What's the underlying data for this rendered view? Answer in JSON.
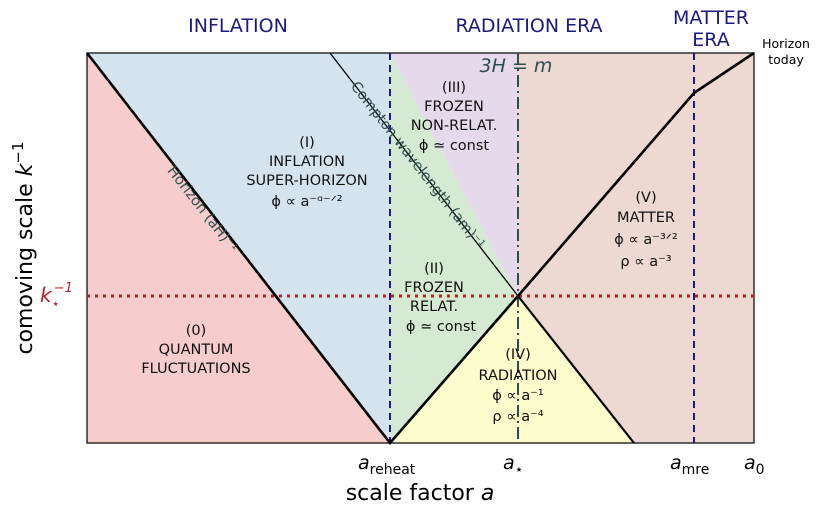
{
  "eras": {
    "inflation": "INFLATION",
    "radiation": "RADIATION ERA",
    "matter_line1": "MATTER",
    "matter_line2": "ERA"
  },
  "horizon_today": {
    "line1": "Horizon",
    "line2": "today"
  },
  "regions": {
    "r0": {
      "id": "(0)",
      "line1": "QUANTUM",
      "line2": "FLUCTUATIONS"
    },
    "r1": {
      "id": "(I)",
      "line1": "INFLATION",
      "line2": "SUPER-HORIZON",
      "eq": "ϕ ∝ a⁻ᵅ⁻ᐟ²"
    },
    "r2": {
      "id": "(II)",
      "line1": "FROZEN",
      "line2": "RELAT.",
      "eq": "ϕ ≃ const"
    },
    "r3": {
      "id": "(III)",
      "line1": "FROZEN",
      "line2": "NON-RELAT.",
      "eq": "ϕ ≃ const"
    },
    "r4": {
      "id": "(IV)",
      "line1": "RADIATION",
      "eq1": "ϕ ∝ a⁻¹",
      "eq2": "ρ ∝ a⁻⁴"
    },
    "r5": {
      "id": "(V)",
      "line1": "MATTER",
      "eq1": "ϕ ∝ a⁻³ᐟ²",
      "eq2": "ρ ∝ a⁻³"
    }
  },
  "curves": {
    "horizon": "Horizon  (aH)⁻¹",
    "compton": "Compton wavelength  (am)⁻¹",
    "condition": "3H = m"
  },
  "x_ticks": {
    "reheat": {
      "base": "a",
      "sub": "reheat"
    },
    "star": {
      "base": "a",
      "sub": "⋆"
    },
    "mre": {
      "base": "a",
      "sub": "mre"
    },
    "zero": {
      "base": "a",
      "sub": "0"
    }
  },
  "k_star": {
    "base": "k",
    "sub": "⋆",
    "sup": "−1"
  },
  "axes": {
    "xlabel": "scale factor",
    "xlabel_var": "a",
    "ylabel": "comoving scale",
    "ylabel_var": "k",
    "ylabel_sup": "−1"
  },
  "colors": {
    "quantum": "#f6cccc",
    "inflation": "#d5e3ef",
    "frozen_relat": "#d6ead3",
    "frozen_nonrelat": "#e6d9ec",
    "radiation": "#fbfbcb",
    "matter": "#ecd9d1",
    "era_text": "#1a1a80",
    "dashed_lines": "#1a1a80",
    "k_star_line": "#b22222",
    "compton_text": "#2f4f4f"
  }
}
